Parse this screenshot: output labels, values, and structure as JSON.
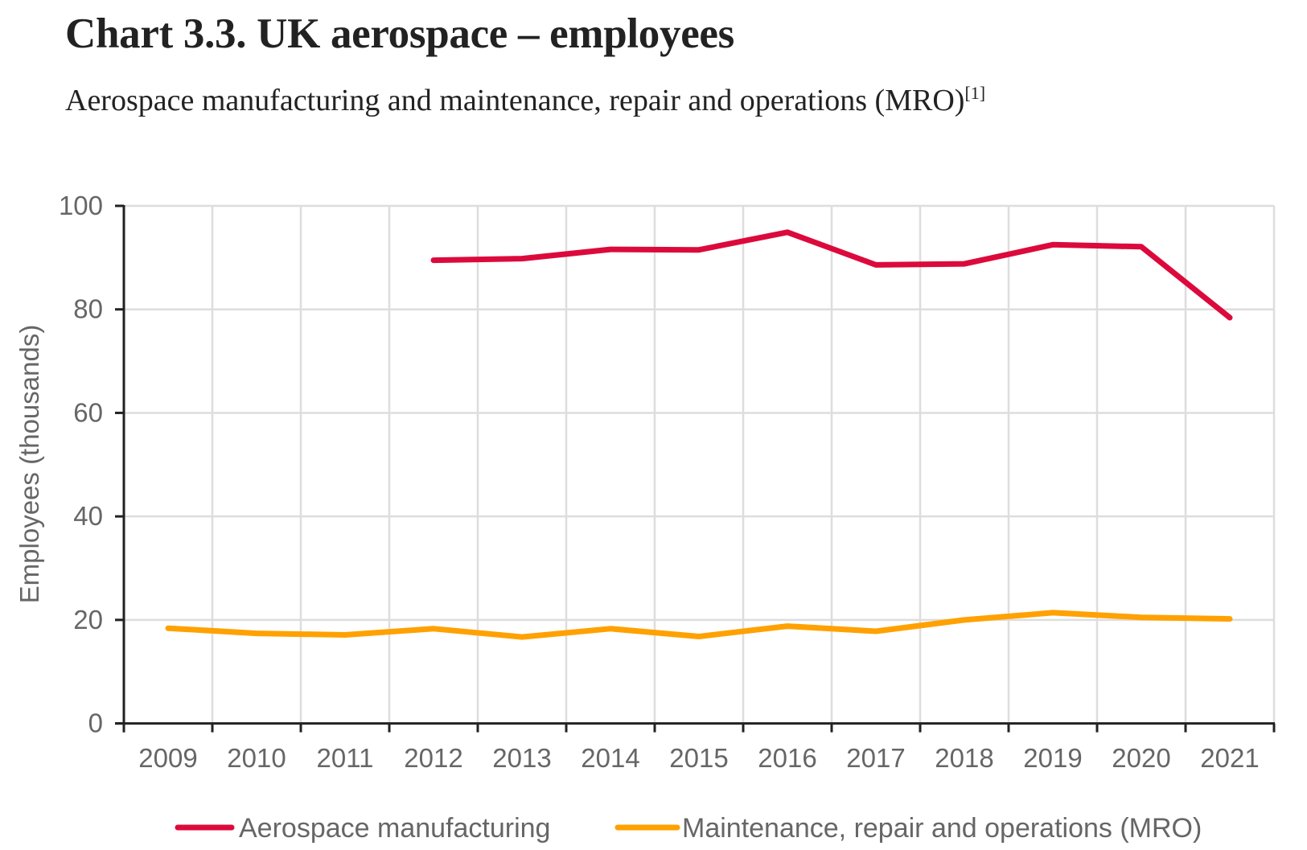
{
  "header": {
    "title": "Chart 3.3. UK aerospace – employees",
    "subtitle": "Aerospace manufacturing and maintenance, repair and operations (MRO)",
    "footnote_marker": "[1]"
  },
  "colors": {
    "manufacturing": "#DC0A3C",
    "mro": "#FFA100",
    "grid": "#DDDDDD",
    "axis": "#222222",
    "text": "#666666"
  },
  "chart_data": {
    "type": "line",
    "title": "Chart 3.3. UK aerospace – employees",
    "subtitle": "Aerospace manufacturing and maintenance, repair and operations (MRO)[1]",
    "xlabel": "",
    "ylabel": "Employees (thousands)",
    "ylim": [
      0,
      100
    ],
    "yticks": [
      0,
      20,
      40,
      60,
      80,
      100
    ],
    "grid": true,
    "legend_position": "bottom",
    "categories": [
      "2009",
      "2010",
      "2011",
      "2012",
      "2013",
      "2014",
      "2015",
      "2016",
      "2017",
      "2018",
      "2019",
      "2020",
      "2021"
    ],
    "series": [
      {
        "name": "Aerospace manufacturing",
        "color": "#DC0A3C",
        "values": [
          null,
          null,
          null,
          89.5,
          89.8,
          91.6,
          91.5,
          94.9,
          88.6,
          88.8,
          92.5,
          92.1,
          78.4
        ]
      },
      {
        "name": "Maintenance, repair and operations (MRO)",
        "color": "#FFA100",
        "values": [
          18.4,
          17.4,
          17.1,
          18.3,
          16.7,
          18.3,
          16.8,
          18.8,
          17.8,
          20.0,
          21.4,
          20.5,
          20.2
        ]
      }
    ]
  }
}
